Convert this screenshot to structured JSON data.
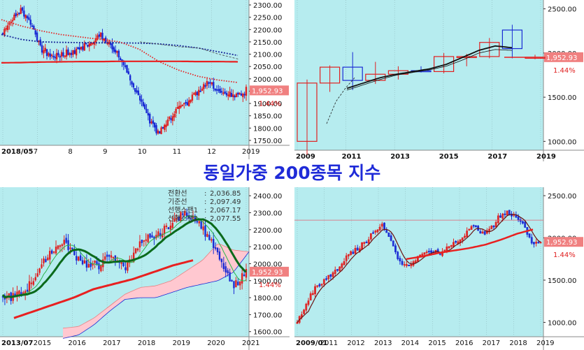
{
  "page_title": "동일가중 200종목 지수",
  "colors": {
    "panel_bg": "#b6ecef",
    "axis_bg": "#ffffff",
    "up": "#e02020",
    "down": "#1a2bd4",
    "ma_red": "#e82020",
    "ma_navy": "#1a2a9a",
    "ma_green_dark": "#0b6a1b",
    "cloud": "#ffc8d0",
    "price_tag_bg": "#f08080",
    "title": "#1f2bd8"
  },
  "chart_data": [
    {
      "type": "candlestick",
      "panel": "top-left",
      "ylim": [
        1730,
        2320
      ],
      "y_ticks": [
        "2300.00",
        "2250.00",
        "2200.00",
        "2150.00",
        "2100.00",
        "2050.00",
        "2000.00",
        "1950.00",
        "1900.00",
        "1850.00",
        "1800.00",
        "1750.00"
      ],
      "x_ticks": [
        "2018/05",
        "7",
        "8",
        "9",
        "10",
        "11",
        "12",
        "2019"
      ],
      "last_price": "1,952.93",
      "change_pct": "1.44%",
      "ohlc_anchors": [
        2190,
        2240,
        2280,
        2220,
        2120,
        2090,
        2100,
        2110,
        2120,
        2150,
        2175,
        2140,
        2090,
        2000,
        1930,
        1840,
        1780,
        1830,
        1880,
        1910,
        1950,
        1990,
        1960,
        1940,
        1930,
        1952
      ],
      "series": [
        {
          "name": "ma_long",
          "color": "navy",
          "values": [
            2180,
            2160,
            2150,
            2148,
            2147,
            2146,
            2146,
            2145,
            2142,
            2135,
            2125,
            2110,
            2095
          ]
        },
        {
          "name": "ma_mid",
          "color": "red",
          "values": [
            2065,
            2066,
            2068,
            2069,
            2070,
            2070,
            2071,
            2071,
            2071,
            2071,
            2070,
            2070,
            2069
          ]
        },
        {
          "name": "ma_dotted",
          "color": "red",
          "values": [
            2240,
            2215,
            2195,
            2180,
            2170,
            2160,
            2150,
            2120,
            2070,
            2035,
            2010,
            1995,
            1985
          ]
        }
      ]
    },
    {
      "type": "candlestick",
      "panel": "top-right",
      "ylim": [
        900,
        2600
      ],
      "y_ticks": [
        "2500.00",
        "2000.00",
        "1500.00",
        "1000.00"
      ],
      "x_ticks": [
        "2009",
        "2011",
        "2013",
        "2015",
        "2017",
        "2019"
      ],
      "last_price": "1,952.93",
      "change_pct": "1.44%",
      "candles": [
        {
          "o": 1000,
          "h": 1700,
          "l": 850,
          "c": 1660
        },
        {
          "o": 1660,
          "h": 1860,
          "l": 1560,
          "c": 1840
        },
        {
          "o": 1840,
          "h": 2010,
          "l": 1580,
          "c": 1690
        },
        {
          "o": 1690,
          "h": 1900,
          "l": 1650,
          "c": 1760
        },
        {
          "o": 1760,
          "h": 1850,
          "l": 1700,
          "c": 1800
        },
        {
          "o": 1800,
          "h": 1850,
          "l": 1780,
          "c": 1790
        },
        {
          "o": 1790,
          "h": 2000,
          "l": 1770,
          "c": 1960
        },
        {
          "o": 1960,
          "h": 1990,
          "l": 1850,
          "c": 1960
        },
        {
          "o": 1960,
          "h": 2170,
          "l": 1940,
          "c": 2120
        },
        {
          "o": 2260,
          "h": 2320,
          "l": 1940,
          "c": 2050
        },
        {
          "o": 1950,
          "h": 1980,
          "l": 1930,
          "c": 1952
        }
      ]
    },
    {
      "type": "candlestick",
      "panel": "bottom-left",
      "ylim": [
        1570,
        2450
      ],
      "y_ticks": [
        "2400.00",
        "2300.00",
        "2200.00",
        "2100.00",
        "2000.00",
        "1900.00",
        "1800.00",
        "1700.00",
        "1600.00"
      ],
      "x_ticks": [
        "2013/07",
        "2015",
        "2016",
        "2017",
        "2018",
        "2019",
        "2020",
        "2021"
      ],
      "last_price": "1,952.93",
      "change_pct": "1.44%",
      "ichimoku": [
        {
          "label": "전환선",
          "value": "2,036.85"
        },
        {
          "label": "기준선",
          "value": "2,097.49"
        },
        {
          "label": "선행스팬1",
          "value": "2,067.17"
        },
        {
          "label": "선행스팬2",
          "value": "2,077.55"
        }
      ],
      "price_anchors": [
        1800,
        1810,
        1850,
        1960,
        2080,
        2130,
        2050,
        1980,
        2000,
        2050,
        1980,
        2090,
        2150,
        2180,
        2250,
        2300,
        2250,
        2150,
        2000,
        1860,
        1952
      ]
    },
    {
      "type": "candlestick",
      "panel": "bottom-right",
      "ylim": [
        830,
        2600
      ],
      "y_ticks": [
        "2500.00",
        "2000.00",
        "1500.00",
        "1000.00"
      ],
      "x_ticks": [
        "2009/01",
        "2011",
        "2012",
        "2013",
        "2014",
        "2015",
        "2016",
        "2017",
        "2018",
        "2019"
      ],
      "last_price": "1,952.93",
      "change_pct": "1.44%",
      "price_anchors": [
        1000,
        1200,
        1400,
        1480,
        1560,
        1650,
        1800,
        1850,
        1950,
        2050,
        2150,
        2010,
        1750,
        1650,
        1750,
        1800,
        1850,
        1800,
        1900,
        1950,
        2050,
        2150,
        2050,
        2100,
        2250,
        2300,
        2250,
        2150,
        1920,
        1952
      ]
    }
  ]
}
